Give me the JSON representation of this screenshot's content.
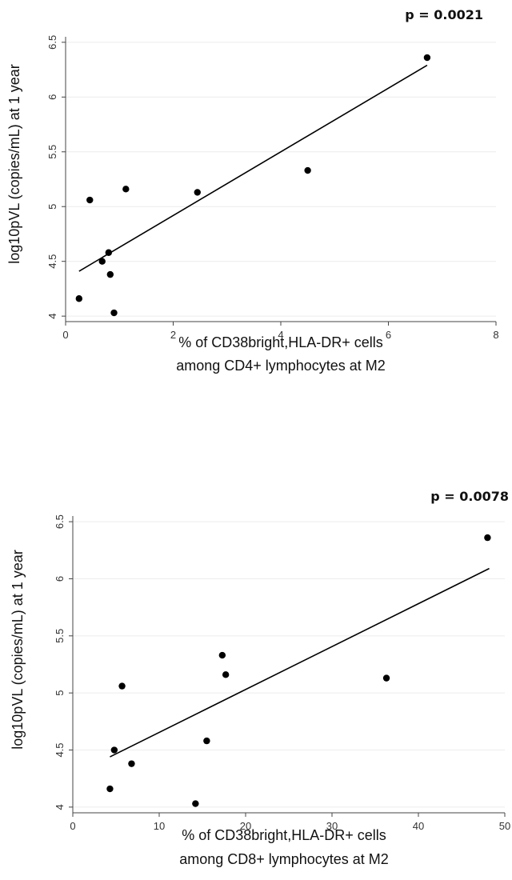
{
  "chart_data": [
    {
      "type": "scatter",
      "annotation": "p = 0.0021",
      "xlabel_lines": [
        "% of CD38bright,HLA-DR+ cells",
        "among CD4+ lymphocytes at M2"
      ],
      "ylabel": "log10pVL (copies/mL) at 1 year",
      "xlim": [
        0,
        8
      ],
      "ylim": [
        3.95,
        6.55
      ],
      "xticks": [
        0,
        2,
        4,
        6,
        8
      ],
      "yticks": [
        4,
        4.5,
        5,
        5.5,
        6,
        6.5
      ],
      "xtick_labels": [
        "0",
        "2",
        "4",
        "6",
        "8"
      ],
      "ytick_labels": [
        "4",
        "4.5",
        "5",
        "5.5",
        "6",
        "6.5"
      ],
      "grid": "horizontal",
      "points": [
        {
          "x": 0.25,
          "y": 4.16
        },
        {
          "x": 0.45,
          "y": 5.06
        },
        {
          "x": 0.68,
          "y": 4.5
        },
        {
          "x": 0.8,
          "y": 4.58
        },
        {
          "x": 0.83,
          "y": 4.38
        },
        {
          "x": 0.9,
          "y": 4.03
        },
        {
          "x": 1.12,
          "y": 5.16
        },
        {
          "x": 2.45,
          "y": 5.13
        },
        {
          "x": 4.5,
          "y": 5.33
        },
        {
          "x": 6.72,
          "y": 6.36
        }
      ],
      "fit_line": {
        "x": [
          0.25,
          6.72
        ],
        "y": [
          4.41,
          6.29
        ]
      }
    },
    {
      "type": "scatter",
      "annotation": "p = 0.0078",
      "xlabel_lines": [
        "% of CD38bright,HLA-DR+ cells",
        "among CD8+ lymphocytes at M2"
      ],
      "ylabel": "log10pVL (copies/mL) at 1 year",
      "xlim": [
        0,
        50
      ],
      "ylim": [
        3.95,
        6.55
      ],
      "xticks": [
        0,
        10,
        20,
        30,
        40,
        50
      ],
      "yticks": [
        4,
        4.5,
        5,
        5.5,
        6,
        6.5
      ],
      "xtick_labels": [
        "0",
        "10",
        "20",
        "30",
        "40",
        "50"
      ],
      "ytick_labels": [
        "4",
        "4.5",
        "5",
        "5.5",
        "6",
        "6.5"
      ],
      "grid": "horizontal",
      "points": [
        {
          "x": 4.3,
          "y": 4.16
        },
        {
          "x": 4.8,
          "y": 4.5
        },
        {
          "x": 5.7,
          "y": 5.06
        },
        {
          "x": 6.8,
          "y": 4.38
        },
        {
          "x": 14.2,
          "y": 4.03
        },
        {
          "x": 15.5,
          "y": 4.58
        },
        {
          "x": 17.3,
          "y": 5.33
        },
        {
          "x": 17.7,
          "y": 5.16
        },
        {
          "x": 36.3,
          "y": 5.13
        },
        {
          "x": 48.0,
          "y": 6.36
        }
      ],
      "fit_line": {
        "x": [
          4.3,
          48.2
        ],
        "y": [
          4.44,
          6.09
        ]
      }
    }
  ]
}
